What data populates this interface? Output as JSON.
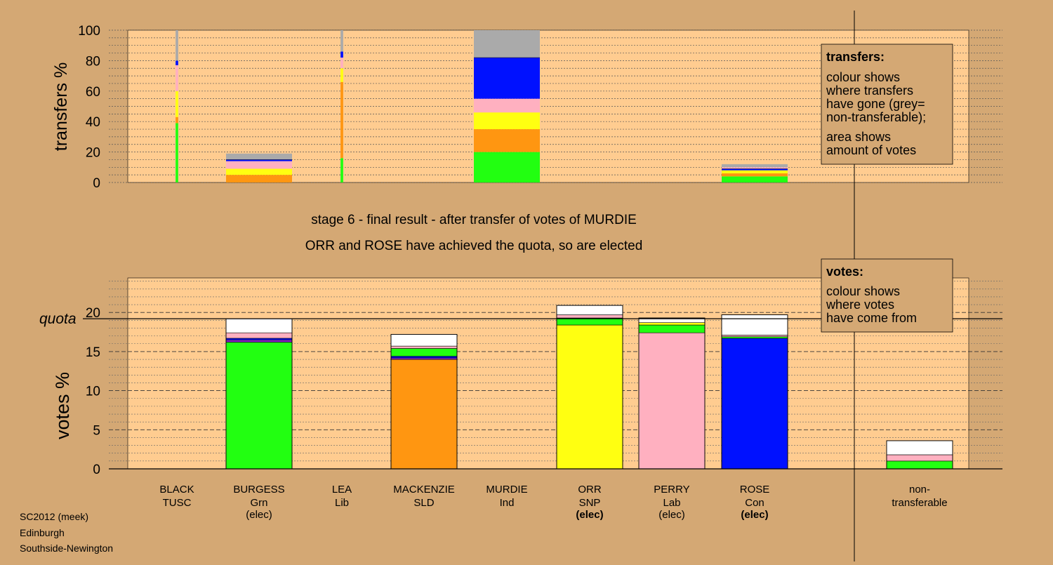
{
  "colors": {
    "page_bg": "#d4a874",
    "plot_bg": "#ffcc90",
    "green": "#22ff11",
    "orange": "#ff9611",
    "yellow": "#ffff11",
    "pink": "#ffb0c0",
    "blue": "#0011ff",
    "purple": "#8822cc",
    "grey": "#aaaaaa",
    "white": "#ffffff"
  },
  "transfers_chart": {
    "ylabel": "transfers %",
    "legend": {
      "title": "transfers:",
      "line1": "colour shows",
      "line2": "where transfers",
      "line3": "have gone (grey=",
      "line4": "non-transferable);",
      "line5": "area shows",
      "line6": "amount of votes"
    }
  },
  "stage_text": {
    "line1": "stage 6 - final result - after transfer of votes of MURDIE",
    "line2": "ORR and ROSE have achieved the quota, so are elected"
  },
  "votes_chart": {
    "ylabel": "votes %",
    "quota_label": "quota",
    "legend": {
      "title": "votes:",
      "line1": "colour shows",
      "line2": "where votes",
      "line3": "have come from"
    }
  },
  "candidates": [
    {
      "name": "BLACK",
      "party": "TUSC",
      "status": ""
    },
    {
      "name": "BURGESS",
      "party": "Grn",
      "status": "(elec)"
    },
    {
      "name": "LEA",
      "party": "Lib",
      "status": ""
    },
    {
      "name": "MACKENZIE",
      "party": "SLD",
      "status": ""
    },
    {
      "name": "MURDIE",
      "party": "Ind",
      "status": ""
    },
    {
      "name": "ORR",
      "party": "SNP",
      "status": "(elec)"
    },
    {
      "name": "PERRY",
      "party": "Lab",
      "status": "(elec)"
    },
    {
      "name": "ROSE",
      "party": "Con",
      "status": "(elec)"
    },
    {
      "name": "non-",
      "party": "transferable",
      "status": ""
    }
  ],
  "footer": {
    "line1": "SC2012 (meek)",
    "line2": "Edinburgh",
    "line3": "Southside-Newington"
  },
  "chart_data": [
    {
      "type": "bar",
      "stacked": true,
      "ylabel": "transfers %",
      "ylim": [
        0,
        100
      ],
      "yticks": [
        0,
        20,
        40,
        60,
        80,
        100
      ],
      "categories": [
        "BLACK",
        "BURGESS",
        "LEA",
        "MACKENZIE",
        "MURDIE",
        "ORR",
        "PERRY",
        "ROSE"
      ],
      "bars": [
        {
          "category": "BLACK",
          "width_rel": 0.04,
          "segments": [
            {
              "color": "green",
              "value": 39
            },
            {
              "color": "orange",
              "value": 4
            },
            {
              "color": "yellow",
              "value": 17
            },
            {
              "color": "pink",
              "value": 17
            },
            {
              "color": "blue",
              "value": 3
            },
            {
              "color": "grey",
              "value": 20
            }
          ]
        },
        {
          "category": "BURGESS",
          "width_rel": 1.0,
          "segments": [
            {
              "color": "orange",
              "value": 5
            },
            {
              "color": "yellow",
              "value": 4
            },
            {
              "color": "pink",
              "value": 5
            },
            {
              "color": "blue",
              "value": 1
            },
            {
              "color": "grey",
              "value": 4
            }
          ]
        },
        {
          "category": "LEA",
          "width_rel": 0.04,
          "segments": [
            {
              "color": "green",
              "value": 16
            },
            {
              "color": "orange",
              "value": 50
            },
            {
              "color": "yellow",
              "value": 9
            },
            {
              "color": "pink",
              "value": 7
            },
            {
              "color": "blue",
              "value": 4
            },
            {
              "color": "grey",
              "value": 14
            }
          ]
        },
        {
          "category": "MURDIE",
          "width_rel": 1.0,
          "segments": [
            {
              "color": "green",
              "value": 20
            },
            {
              "color": "orange",
              "value": 15
            },
            {
              "color": "yellow",
              "value": 11
            },
            {
              "color": "pink",
              "value": 9
            },
            {
              "color": "blue",
              "value": 27
            },
            {
              "color": "grey",
              "value": 18
            }
          ]
        },
        {
          "category": "ROSE",
          "width_rel": 1.0,
          "segments": [
            {
              "color": "green",
              "value": 4
            },
            {
              "color": "orange",
              "value": 2
            },
            {
              "color": "yellow",
              "value": 2
            },
            {
              "color": "blue",
              "value": 1
            },
            {
              "color": "pink",
              "value": 1
            },
            {
              "color": "grey",
              "value": 2
            }
          ]
        }
      ]
    },
    {
      "type": "bar",
      "stacked": true,
      "ylabel": "votes %",
      "ylim": [
        0,
        24.5
      ],
      "yticks": [
        0,
        5,
        10,
        15,
        20
      ],
      "quota": 19.2,
      "categories": [
        "BLACK",
        "BURGESS",
        "LEA",
        "MACKENZIE",
        "MURDIE",
        "ORR",
        "PERRY",
        "ROSE",
        "non-transferable"
      ],
      "bars": [
        {
          "category": "BURGESS",
          "segments": [
            {
              "color": "green",
              "value": 16.2
            },
            {
              "color": "purple",
              "value": 0.3
            },
            {
              "color": "blue",
              "value": 0.2
            },
            {
              "color": "pink",
              "value": 0.7
            },
            {
              "color": "white",
              "value": 1.8
            }
          ]
        },
        {
          "category": "MACKENZIE",
          "segments": [
            {
              "color": "orange",
              "value": 14.0
            },
            {
              "color": "purple",
              "value": 0.2
            },
            {
              "color": "blue",
              "value": 0.2
            },
            {
              "color": "green",
              "value": 1.0
            },
            {
              "color": "pink",
              "value": 0.3
            },
            {
              "color": "white",
              "value": 1.5
            }
          ]
        },
        {
          "category": "ORR",
          "segments": [
            {
              "color": "yellow",
              "value": 18.4
            },
            {
              "color": "green",
              "value": 0.9
            },
            {
              "color": "pink",
              "value": 0.4
            },
            {
              "color": "white",
              "value": 1.2
            }
          ]
        },
        {
          "category": "PERRY",
          "segments": [
            {
              "color": "pink",
              "value": 17.4
            },
            {
              "color": "green",
              "value": 1.0
            },
            {
              "color": "yellow",
              "value": 0.3
            },
            {
              "color": "white",
              "value": 0.6
            }
          ]
        },
        {
          "category": "ROSE",
          "segments": [
            {
              "color": "blue",
              "value": 16.7
            },
            {
              "color": "green",
              "value": 0.2
            },
            {
              "color": "pink",
              "value": 0.2
            },
            {
              "color": "white",
              "value": 2.6
            }
          ]
        },
        {
          "category": "non-transferable",
          "segments": [
            {
              "color": "green",
              "value": 1.0
            },
            {
              "color": "pink",
              "value": 0.8
            },
            {
              "color": "white",
              "value": 1.8
            }
          ]
        }
      ]
    }
  ]
}
